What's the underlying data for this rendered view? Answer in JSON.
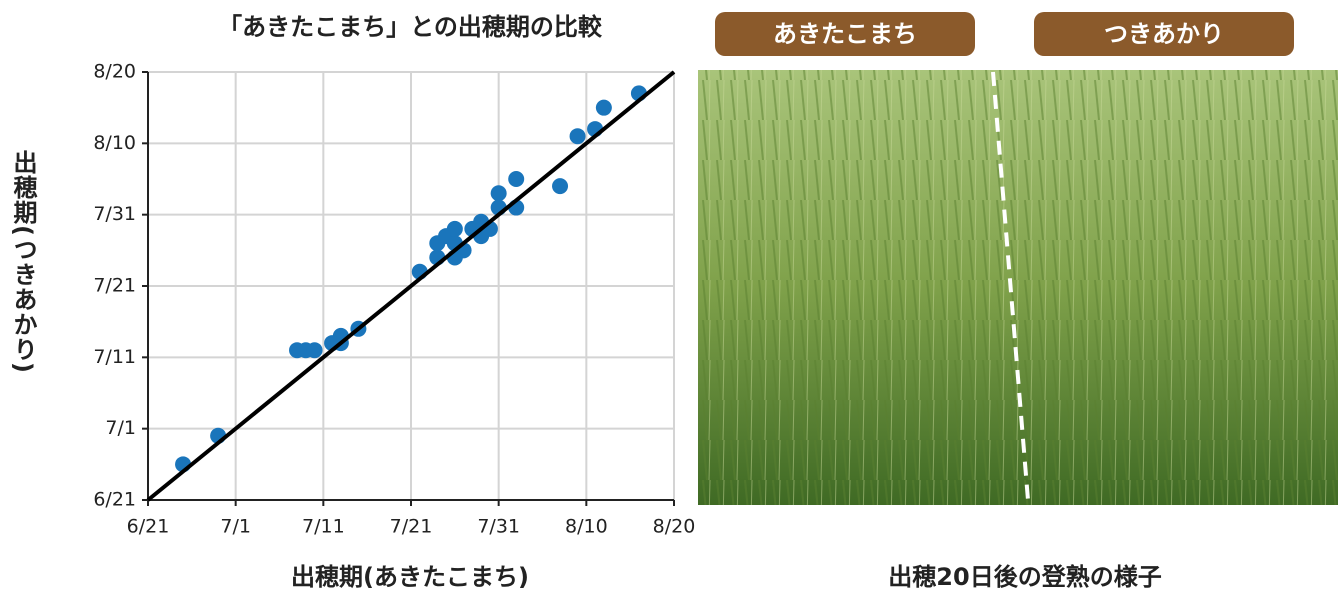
{
  "chart_data": {
    "type": "scatter",
    "title": "「あきたこまち」との出穂期の比較",
    "x_label": "出穂期(あきたこまち)",
    "y_label": "出穂期(つきあかり)",
    "color": "#1a75bb",
    "grid": true,
    "xlim": [
      172,
      232
    ],
    "ylim": [
      172,
      232
    ],
    "xticks": [
      {
        "value": 172,
        "label": "6/21"
      },
      {
        "value": 182,
        "label": "7/1"
      },
      {
        "value": 192,
        "label": "7/11"
      },
      {
        "value": 202,
        "label": "7/21"
      },
      {
        "value": 212,
        "label": "7/31"
      },
      {
        "value": 222,
        "label": "8/10"
      },
      {
        "value": 232,
        "label": "8/20"
      }
    ],
    "yticks": [
      {
        "value": 172,
        "label": "6/21"
      },
      {
        "value": 182,
        "label": "7/1"
      },
      {
        "value": 192,
        "label": "7/11"
      },
      {
        "value": 202,
        "label": "7/21"
      },
      {
        "value": 212,
        "label": "7/31"
      },
      {
        "value": 222,
        "label": "8/10"
      },
      {
        "value": 232,
        "label": "8/20"
      }
    ],
    "x": [
      176,
      180,
      189,
      190,
      191,
      193,
      194,
      194,
      196,
      203,
      205,
      205,
      206,
      207,
      207,
      207,
      208,
      209,
      210,
      210,
      211,
      212,
      212,
      214,
      214,
      219,
      221,
      223,
      224,
      228
    ],
    "y": [
      177,
      181,
      193,
      193,
      193,
      194,
      195,
      194,
      196,
      204,
      206,
      208,
      209,
      208,
      210,
      206,
      207,
      210,
      209,
      211,
      210,
      215,
      213,
      213,
      217,
      216,
      223,
      224,
      227,
      229
    ]
  },
  "photo": {
    "labels": [
      "あきたこまち",
      "つきあかり"
    ],
    "caption": "出穂20日後の登熟の様子"
  }
}
